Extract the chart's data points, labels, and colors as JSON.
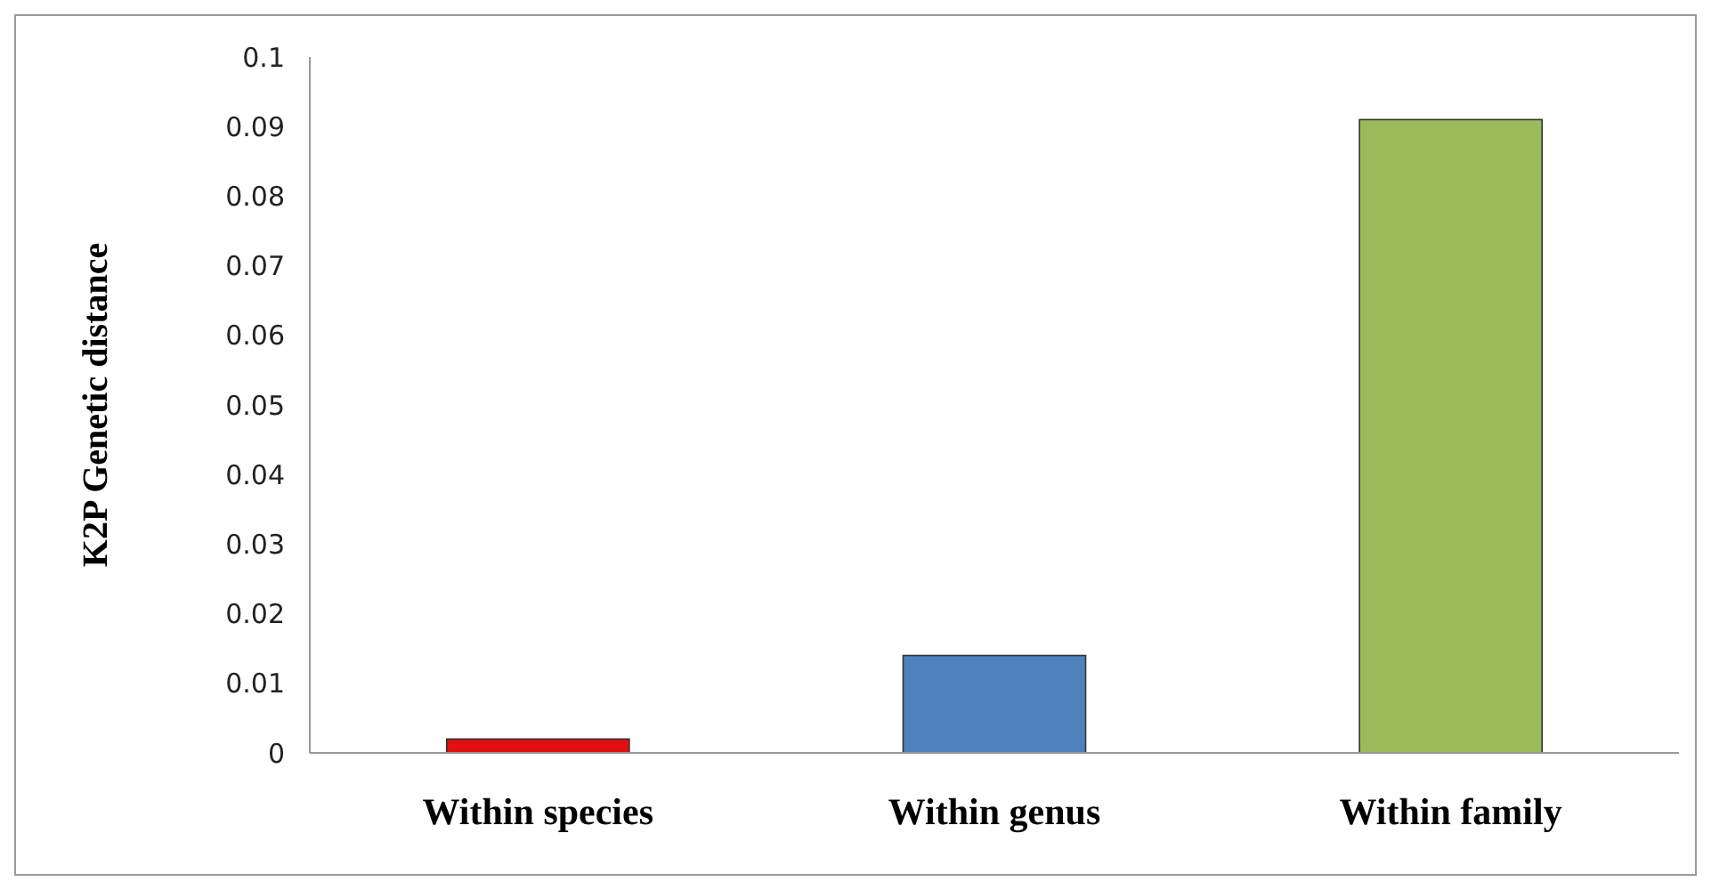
{
  "chart_data": {
    "type": "bar",
    "ylabel": "K2P Genetic distance",
    "categories": [
      "Within species",
      "Within genus",
      "Within family"
    ],
    "values": [
      0.002,
      0.014,
      0.091
    ],
    "colors": [
      "#e01010",
      "#4f81bd",
      "#9bbb59"
    ],
    "ylim": [
      0,
      0.1
    ],
    "yticks": [
      0,
      0.01,
      0.02,
      0.03,
      0.04,
      0.05,
      0.06,
      0.07,
      0.08,
      0.09,
      0.1
    ]
  }
}
